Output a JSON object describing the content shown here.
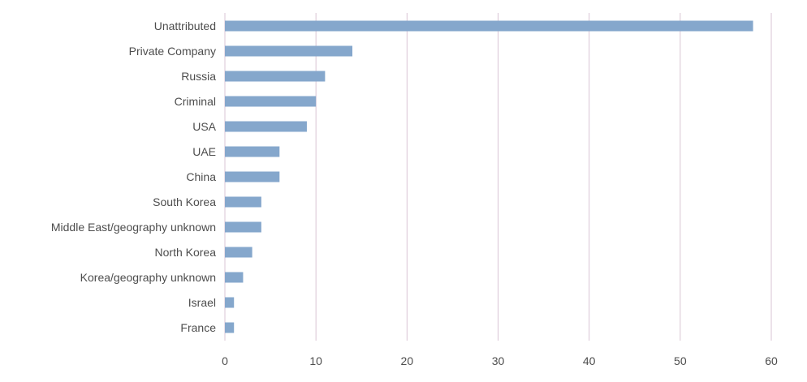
{
  "chart_data": {
    "type": "bar",
    "orientation": "horizontal",
    "categories": [
      "Unattributed",
      "Private Company",
      "Russia",
      "Criminal",
      "USA",
      "UAE",
      "China",
      "South Korea",
      "Middle East/geography unknown",
      "North Korea",
      "Korea/geography unknown",
      "Israel",
      "France"
    ],
    "values": [
      58,
      14,
      11,
      10,
      9,
      6,
      6,
      4,
      4,
      3,
      2,
      1,
      1
    ],
    "xlim": [
      0,
      60
    ],
    "xticks": [
      "0",
      "10",
      "20",
      "30",
      "40",
      "50",
      "60"
    ],
    "grid": "vertical",
    "title": "",
    "xlabel": "",
    "ylabel": "",
    "bar_color": "#85a7cc"
  }
}
